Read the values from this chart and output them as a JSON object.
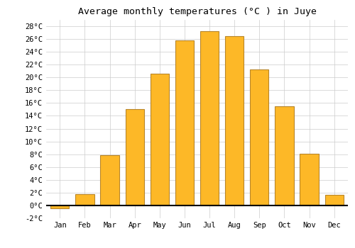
{
  "title": "Average monthly temperatures (°C ) in Juye",
  "months": [
    "Jan",
    "Feb",
    "Mar",
    "Apr",
    "May",
    "Jun",
    "Jul",
    "Aug",
    "Sep",
    "Oct",
    "Nov",
    "Dec"
  ],
  "values": [
    -0.5,
    1.8,
    7.9,
    15.0,
    20.6,
    25.8,
    27.2,
    26.4,
    21.3,
    15.5,
    8.1,
    1.7
  ],
  "bar_color": "#FDB827",
  "bar_edge_color": "#B8862A",
  "background_color": "#FFFFFF",
  "grid_color": "#CCCCCC",
  "ylim": [
    -2,
    29
  ],
  "yticks": [
    -2,
    0,
    2,
    4,
    6,
    8,
    10,
    12,
    14,
    16,
    18,
    20,
    22,
    24,
    26,
    28
  ],
  "title_fontsize": 9.5,
  "tick_fontsize": 7.5,
  "font_family": "monospace",
  "bar_width": 0.75,
  "figsize": [
    5.0,
    3.5
  ],
  "dpi": 100
}
